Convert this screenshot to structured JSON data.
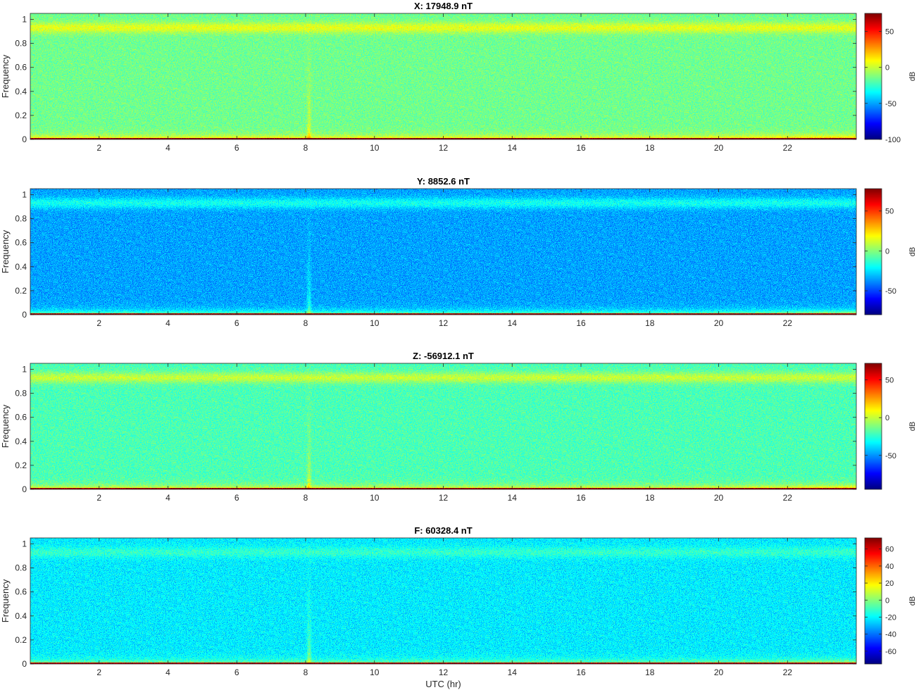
{
  "chart_data": [
    {
      "type": "heatmap",
      "title": "X: 17948.9 nT",
      "xlabel": "",
      "ylabel": "Frequency",
      "xlim": [
        0,
        24
      ],
      "ylim": [
        0,
        1.05
      ],
      "xticks": [
        "2",
        "4",
        "6",
        "8",
        "10",
        "12",
        "14",
        "16",
        "18",
        "20",
        "22"
      ],
      "yticks": [
        "0",
        "0.2",
        "0.4",
        "0.6",
        "0.8",
        "1"
      ],
      "colorbar": {
        "label": "dB",
        "range": [
          -100,
          75
        ],
        "ticks": [
          "50",
          "0",
          "-50",
          "-100"
        ],
        "tick_values": [
          50,
          0,
          -50,
          -100
        ]
      },
      "background_db": -15,
      "top_band_db": 5,
      "low_band_db": 30,
      "baseline_db": 75
    },
    {
      "type": "heatmap",
      "title": "Y: 8852.6 nT",
      "xlabel": "",
      "ylabel": "Frequency",
      "xlim": [
        0,
        24
      ],
      "ylim": [
        0,
        1.05
      ],
      "xticks": [
        "2",
        "4",
        "6",
        "8",
        "10",
        "12",
        "14",
        "16",
        "18",
        "20",
        "22"
      ],
      "yticks": [
        "0",
        "0.2",
        "0.4",
        "0.6",
        "0.8",
        "1"
      ],
      "colorbar": {
        "label": "dB",
        "range": [
          -80,
          78
        ],
        "ticks": [
          "50",
          "0",
          "-50"
        ],
        "tick_values": [
          50,
          0,
          -50
        ]
      },
      "background_db": -35,
      "top_band_db": -18,
      "low_band_db": 20,
      "baseline_db": 75
    },
    {
      "type": "heatmap",
      "title": "Z: -56912.1 nT",
      "xlabel": "",
      "ylabel": "Frequency",
      "xlim": [
        0,
        24
      ],
      "ylim": [
        0,
        1.05
      ],
      "xticks": [
        "2",
        "4",
        "6",
        "8",
        "10",
        "12",
        "14",
        "16",
        "18",
        "20",
        "22"
      ],
      "yticks": [
        "0",
        "0.2",
        "0.4",
        "0.6",
        "0.8",
        "1"
      ],
      "colorbar": {
        "label": "dB",
        "range": [
          -95,
          72
        ],
        "ticks": [
          "50",
          "0",
          "-50"
        ],
        "tick_values": [
          50,
          0,
          -50
        ]
      },
      "background_db": -20,
      "top_band_db": 0,
      "low_band_db": 25,
      "baseline_db": 70
    },
    {
      "type": "heatmap",
      "title": "F: 60328.4 nT",
      "xlabel": "UTC (hr)",
      "ylabel": "Frequency",
      "xlim": [
        0,
        24
      ],
      "ylim": [
        0,
        1.05
      ],
      "xticks": [
        "2",
        "4",
        "6",
        "8",
        "10",
        "12",
        "14",
        "16",
        "18",
        "20",
        "22"
      ],
      "yticks": [
        "0",
        "0.2",
        "0.4",
        "0.6",
        "0.8",
        "1"
      ],
      "colorbar": {
        "label": "dB",
        "range": [
          -75,
          73
        ],
        "ticks": [
          "60",
          "40",
          "20",
          "0",
          "-20",
          "-40",
          "-60"
        ],
        "tick_values": [
          60,
          40,
          20,
          0,
          -20,
          -40,
          -60
        ]
      },
      "background_db": -22,
      "top_band_db": -12,
      "low_band_db": 15,
      "baseline_db": 70
    }
  ]
}
